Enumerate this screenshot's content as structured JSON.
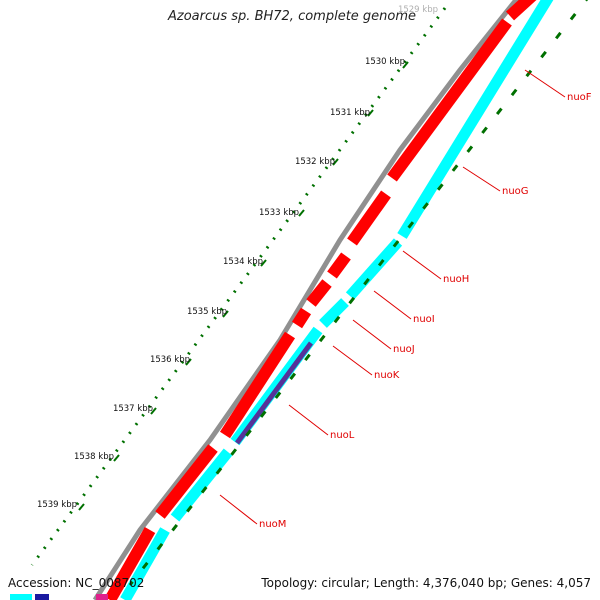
{
  "map": {
    "title": "Azoarcus sp. BH72, complete genome",
    "accession": "Accession: NC_008702",
    "summary": "Topology: circular; Length: 4,376,040 bp; Genes: 4,057"
  },
  "kbp_labels": [
    "1529 kbp",
    "1530 kbp",
    "1531 kbp",
    "1532 kbp",
    "1533 kbp",
    "1534 kbp",
    "1535 kbp",
    "1536 kbp",
    "1537 kbp",
    "1538 kbp",
    "1539 kbp"
  ],
  "genes": [
    "nuoF",
    "nuoG",
    "nuoH",
    "nuoI",
    "nuoJ",
    "nuoK",
    "nuoL",
    "nuoM"
  ],
  "colors": {
    "backbone": "#909090",
    "cds_forward": "#ff0000",
    "cds_reverse": "#00ffff",
    "feature_dark": "#553399",
    "tick_green": "#007000",
    "gene_label": "#e00000",
    "kbp_label": "#111111"
  }
}
